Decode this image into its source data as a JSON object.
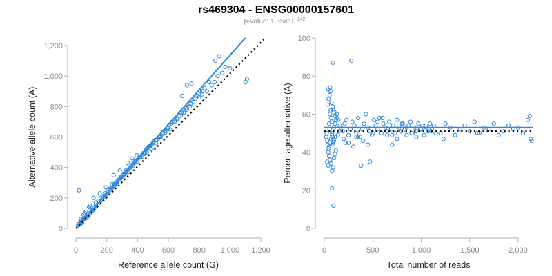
{
  "title": "rs469304 - ENSG00000157601",
  "subtitle": {
    "prefix": "p-value: 1.55×10",
    "exponent": "-142"
  },
  "colors": {
    "points": "#2e86de",
    "fit_line": "#2e86de",
    "reference_line": "#000000"
  },
  "chart_data": [
    {
      "type": "scatter",
      "xlabel": "Reference allele count (G)",
      "ylabel": "Alternative allele count (A)",
      "xlim": [
        0,
        1200
      ],
      "ylim": [
        0,
        1200
      ],
      "x_ticks": [
        0,
        200,
        400,
        600,
        800,
        1000,
        1200
      ],
      "x_tick_labels": [
        "0",
        "200",
        "400",
        "600",
        "800",
        "1,000",
        "1,200"
      ],
      "y_ticks": [
        0,
        200,
        400,
        600,
        800,
        1000,
        1200
      ],
      "y_tick_labels": [
        "0",
        "200",
        "400",
        "600",
        "800",
        "1,000",
        "1,200"
      ],
      "fit_line": {
        "style": "solid",
        "x": [
          0,
          1100
        ],
        "y": [
          0,
          1250
        ]
      },
      "reference_line": {
        "style": "dotted",
        "x": [
          0,
          1220
        ],
        "y": [
          0,
          1240
        ]
      },
      "points": {
        "x": [
          15,
          20,
          25,
          30,
          35,
          40,
          45,
          50,
          55,
          60,
          70,
          80,
          90,
          100,
          110,
          120,
          130,
          140,
          150,
          160,
          170,
          180,
          190,
          200,
          210,
          220,
          230,
          240,
          250,
          260,
          270,
          280,
          290,
          300,
          310,
          320,
          330,
          340,
          350,
          360,
          370,
          380,
          390,
          400,
          410,
          420,
          430,
          440,
          450,
          460,
          470,
          480,
          490,
          500,
          520,
          540,
          560,
          580,
          600,
          620,
          640,
          660,
          680,
          700,
          720,
          740,
          760,
          800,
          820,
          850,
          880,
          900,
          920,
          950,
          1000,
          1100,
          1110,
          30,
          60,
          90,
          130,
          160,
          190,
          220,
          250,
          280,
          310,
          340,
          370,
          400,
          430,
          460,
          490,
          520,
          550,
          580,
          610,
          640,
          670,
          700,
          730,
          760,
          790,
          820,
          40,
          75,
          105,
          145,
          175,
          205,
          235,
          265,
          295,
          325,
          355,
          385,
          415,
          445,
          475,
          505,
          535,
          565,
          595,
          625,
          655,
          685,
          715,
          745,
          775,
          805,
          835,
          865,
          20,
          35,
          50,
          65,
          85,
          115,
          155,
          195,
          245,
          285,
          335,
          365,
          395,
          455,
          485,
          515,
          545,
          575,
          605,
          690,
          720,
          750,
          905,
          930,
          970
        ],
        "y": [
          20,
          30,
          25,
          40,
          50,
          45,
          55,
          60,
          70,
          65,
          80,
          90,
          100,
          110,
          120,
          135,
          150,
          155,
          170,
          180,
          190,
          205,
          215,
          225,
          240,
          250,
          265,
          270,
          280,
          300,
          310,
          320,
          330,
          340,
          355,
          360,
          375,
          380,
          400,
          410,
          420,
          430,
          445,
          450,
          465,
          470,
          480,
          495,
          500,
          520,
          530,
          540,
          550,
          560,
          580,
          600,
          620,
          640,
          660,
          690,
          700,
          720,
          740,
          760,
          780,
          800,
          830,
          860,
          880,
          900,
          940,
          960,
          1000,
          1020,
          1050,
          960,
          980,
          60,
          100,
          150,
          170,
          200,
          230,
          260,
          290,
          320,
          350,
          370,
          410,
          440,
          470,
          500,
          520,
          560,
          600,
          630,
          650,
          700,
          740,
          760,
          800,
          830,
          870,
          900,
          35,
          70,
          120,
          180,
          210,
          250,
          290,
          300,
          340,
          380,
          400,
          440,
          470,
          490,
          540,
          570,
          590,
          630,
          660,
          700,
          720,
          760,
          790,
          820,
          850,
          900,
          920,
          960,
          250,
          50,
          90,
          110,
          140,
          200,
          230,
          270,
          350,
          380,
          430,
          460,
          480,
          520,
          540,
          580,
          600,
          640,
          680,
          870,
          940,
          950,
          1100,
          1130,
          1060
        ]
      }
    },
    {
      "type": "scatter",
      "xlabel": "Total number of reads",
      "ylabel": "Percentage alternative (A)",
      "xlim": [
        0,
        2150
      ],
      "ylim": [
        0,
        100
      ],
      "x_ticks": [
        0,
        500,
        1000,
        1500,
        2000
      ],
      "x_tick_labels": [
        "0",
        "500",
        "1,000",
        "1,500",
        "2,000"
      ],
      "y_ticks": [
        0,
        20,
        40,
        60,
        80,
        100
      ],
      "y_tick_labels": [
        "0",
        "20",
        "40",
        "60",
        "80",
        "100"
      ],
      "fit_line": {
        "style": "solid",
        "x": [
          0,
          2150
        ],
        "y": [
          53,
          53
        ]
      },
      "reference_line": {
        "style": "dotted",
        "x": [
          0,
          2150
        ],
        "y": [
          51,
          51
        ]
      },
      "points": {
        "x": [
          20,
          25,
          30,
          35,
          40,
          45,
          50,
          55,
          60,
          65,
          70,
          75,
          80,
          85,
          90,
          95,
          100,
          110,
          120,
          130,
          140,
          150,
          160,
          30,
          40,
          50,
          60,
          70,
          80,
          90,
          100,
          110,
          120,
          35,
          45,
          55,
          65,
          75,
          85,
          95,
          105,
          115,
          130,
          145,
          50,
          60,
          70,
          80,
          90,
          100,
          110,
          170,
          190,
          210,
          230,
          250,
          270,
          290,
          310,
          330,
          350,
          370,
          390,
          410,
          430,
          450,
          470,
          490,
          510,
          530,
          550,
          570,
          590,
          610,
          630,
          650,
          670,
          690,
          710,
          730,
          750,
          770,
          790,
          810,
          830,
          850,
          870,
          890,
          910,
          930,
          950,
          970,
          990,
          1010,
          1030,
          1050,
          1070,
          1090,
          1110,
          1130,
          1150,
          200,
          250,
          300,
          350,
          400,
          450,
          500,
          550,
          600,
          650,
          700,
          750,
          800,
          850,
          900,
          950,
          1000,
          1050,
          1100,
          1200,
          1250,
          1300,
          1350,
          1400,
          1450,
          1500,
          1550,
          1600,
          1650,
          1700,
          1750,
          1800,
          1850,
          1900,
          1950,
          2000,
          2050,
          2100,
          2120,
          2130,
          2140,
          90,
          280,
          380,
          470,
          80,
          95,
          60,
          40,
          220,
          330,
          700,
          1230,
          1580
        ],
        "y": [
          48,
          50,
          46,
          44,
          40,
          42,
          55,
          52,
          60,
          62,
          58,
          56,
          50,
          48,
          45,
          47,
          53,
          55,
          57,
          60,
          49,
          51,
          54,
          35,
          33,
          38,
          36,
          34,
          30,
          32,
          37,
          39,
          41,
          65,
          68,
          70,
          72,
          66,
          64,
          62,
          61,
          59,
          58,
          57,
          43,
          45,
          47,
          49,
          44,
          46,
          48,
          53,
          51,
          55,
          57,
          49,
          52,
          56,
          54,
          50,
          58,
          48,
          52,
          55,
          60,
          53,
          51,
          49,
          57,
          54,
          52,
          58,
          50,
          55,
          53,
          49,
          56,
          52,
          54,
          50,
          57,
          53,
          51,
          55,
          52,
          49,
          54,
          56,
          50,
          53,
          51,
          55,
          52,
          54,
          49,
          53,
          51,
          55,
          52,
          54,
          50,
          47,
          45,
          43,
          48,
          46,
          44,
          50,
          56,
          58,
          51,
          49,
          47,
          55,
          53,
          50,
          48,
          52,
          54,
          51,
          50,
          55,
          53,
          49,
          52,
          54,
          51,
          56,
          50,
          53,
          52,
          55,
          49,
          51,
          54,
          52,
          53,
          50,
          57,
          59,
          47,
          46,
          87,
          88,
          33,
          35,
          21,
          12,
          74,
          73,
          45,
          48,
          44,
          47,
          50
        ]
      }
    }
  ]
}
